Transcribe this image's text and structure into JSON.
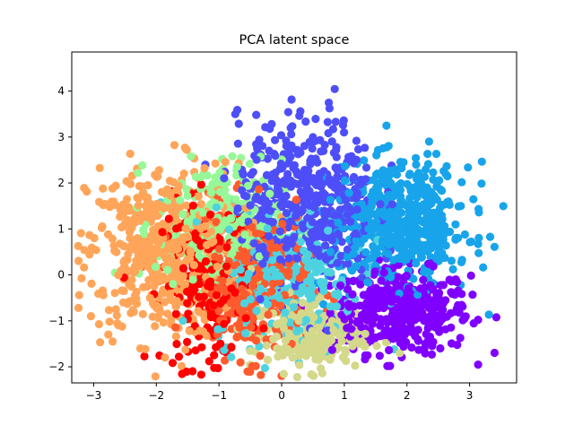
{
  "chart_data": {
    "type": "scatter",
    "title": "PCA latent space",
    "xlabel": "",
    "ylabel": "",
    "xlim": [
      -3.35,
      3.75
    ],
    "ylim": [
      -2.35,
      4.85
    ],
    "xticks": [
      -3,
      -2,
      -1,
      0,
      1,
      2,
      3
    ],
    "yticks": [
      -2,
      -1,
      0,
      1,
      2,
      3,
      4
    ],
    "grid": false,
    "legend": "none",
    "series": [
      {
        "color": "#8000ff",
        "center": [
          1.9,
          -0.8
        ],
        "spread": [
          0.55,
          0.45
        ],
        "count": 420
      },
      {
        "color": "#ffa55a",
        "center": [
          -1.9,
          0.5
        ],
        "spread": [
          0.6,
          0.95
        ],
        "count": 520
      },
      {
        "color": "#ff0000",
        "center": [
          -1.2,
          -0.2
        ],
        "spread": [
          0.35,
          0.9
        ],
        "count": 220
      },
      {
        "color": "#ff5a2e",
        "center": [
          -0.5,
          -0.2
        ],
        "spread": [
          0.45,
          0.8
        ],
        "count": 300
      },
      {
        "color": "#96f896",
        "center": [
          -1.0,
          1.1
        ],
        "spread": [
          0.5,
          0.7
        ],
        "count": 260
      },
      {
        "color": "#4dd3e0",
        "center": [
          0.1,
          0.0
        ],
        "spread": [
          0.6,
          0.75
        ],
        "count": 320
      },
      {
        "color": "#d4d88a",
        "center": [
          0.4,
          -1.3
        ],
        "spread": [
          0.45,
          0.4
        ],
        "count": 240
      },
      {
        "color": "#4e4ef8",
        "center": [
          0.4,
          1.6
        ],
        "spread": [
          0.55,
          0.9
        ],
        "count": 520
      },
      {
        "color": "#18a4ea",
        "center": [
          1.9,
          1.1
        ],
        "spread": [
          0.55,
          0.65
        ],
        "count": 560
      }
    ]
  }
}
